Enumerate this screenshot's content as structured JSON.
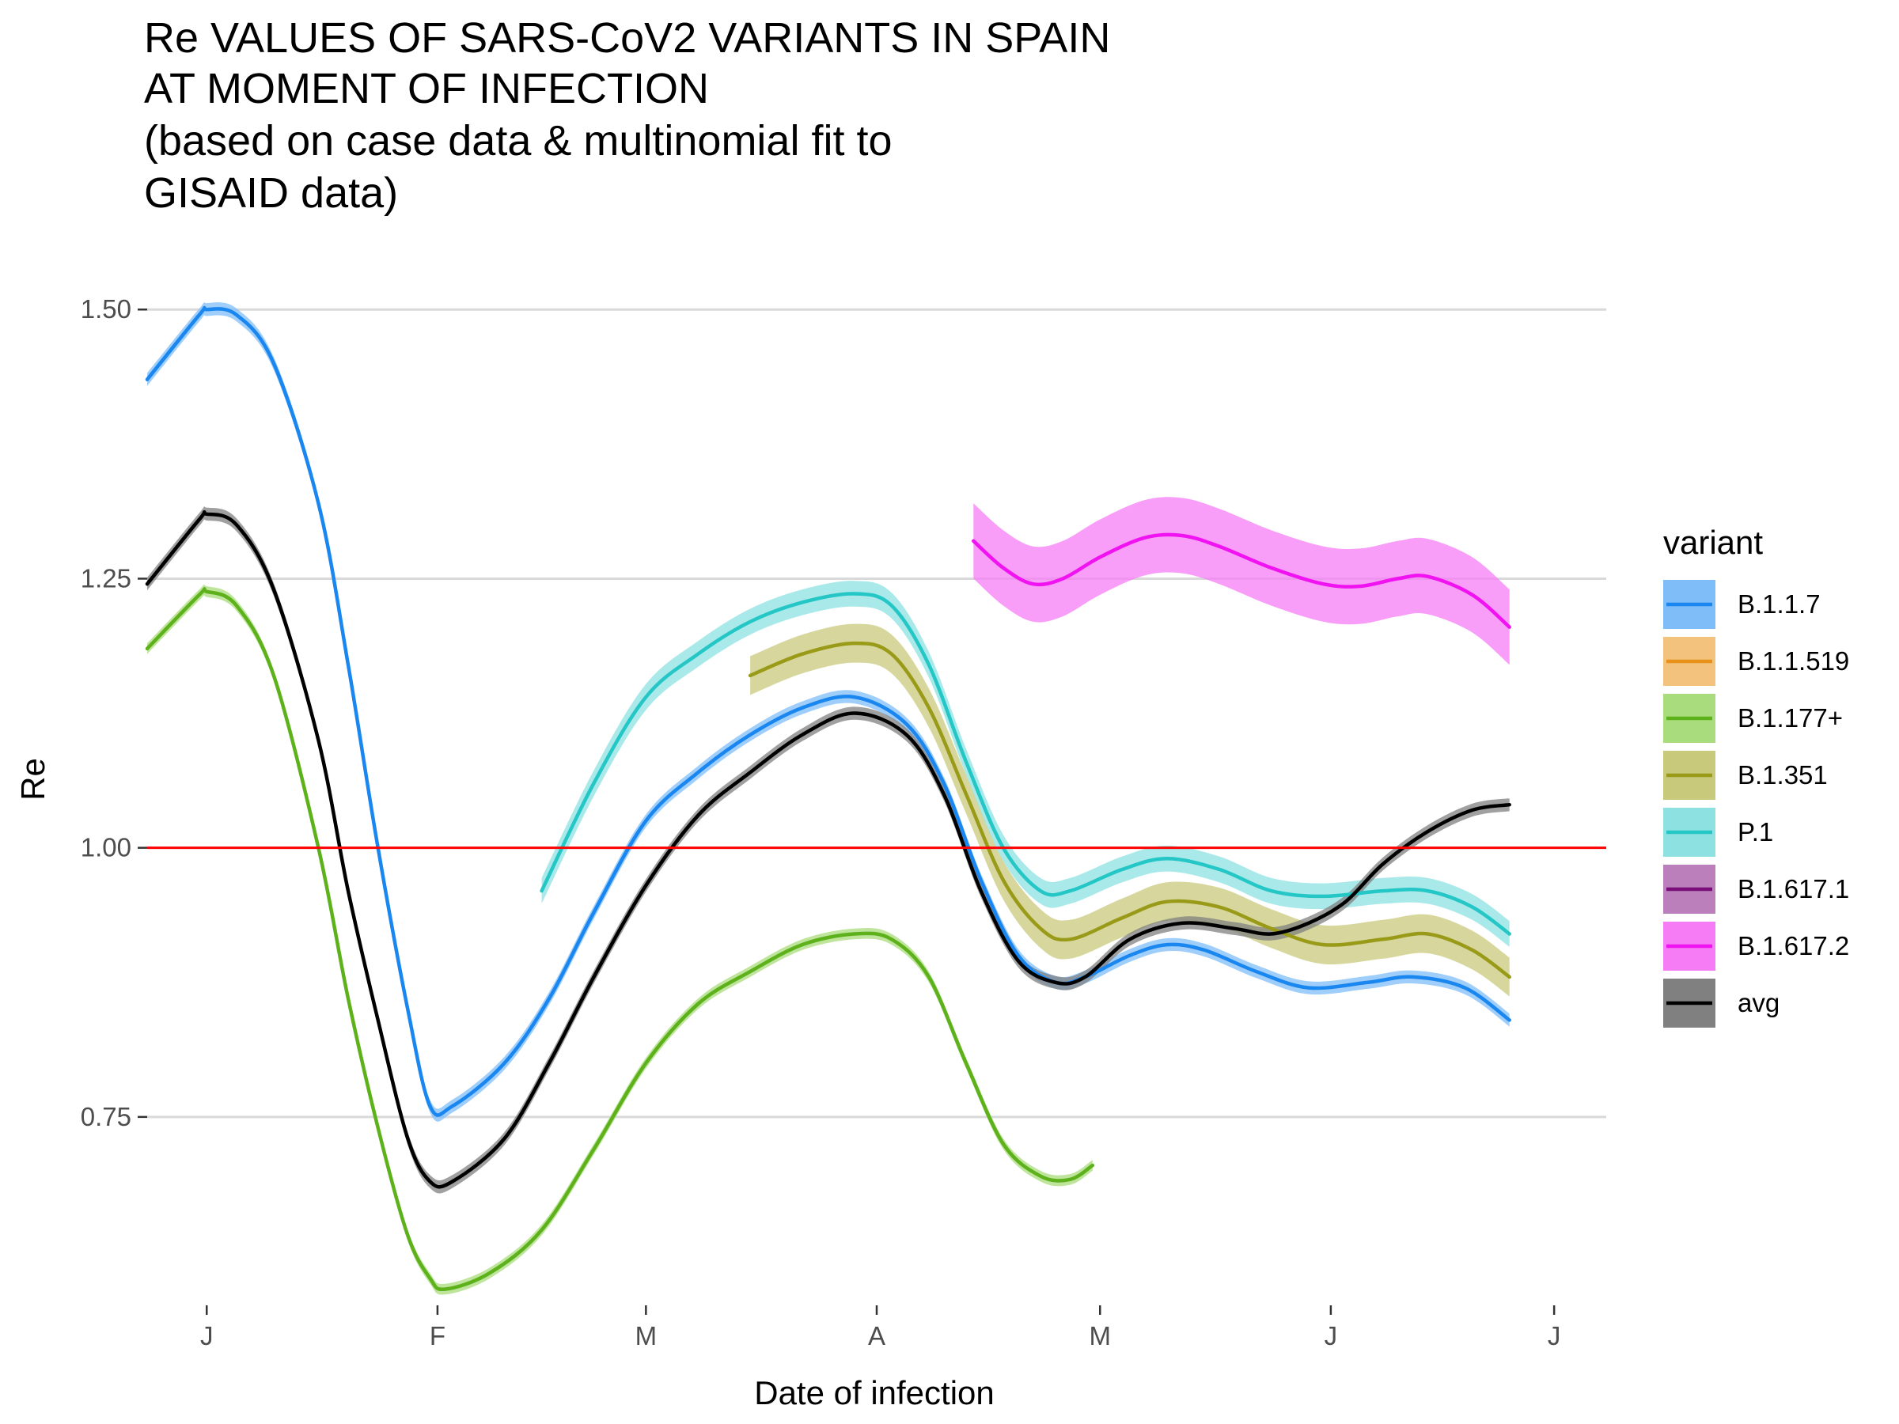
{
  "chart_data": {
    "type": "line",
    "title_lines": [
      "Re VALUES OF SARS-CoV2 VARIANTS IN SPAIN",
      "AT MOMENT OF INFECTION",
      "(based on case data & multinomial fit to",
      "GISAID data)"
    ],
    "xlabel": "Date of infection",
    "ylabel": "Re",
    "x_range": [
      "2020-12-24",
      "2021-07-08"
    ],
    "ylim": [
      0.575,
      1.545
    ],
    "x_ticks": [
      {
        "date": "2021-01-01",
        "label": "J"
      },
      {
        "date": "2021-02-01",
        "label": "F"
      },
      {
        "date": "2021-03-01",
        "label": "M"
      },
      {
        "date": "2021-04-01",
        "label": "A"
      },
      {
        "date": "2021-05-01",
        "label": "M"
      },
      {
        "date": "2021-06-01",
        "label": "J"
      },
      {
        "date": "2021-07-01",
        "label": "J"
      }
    ],
    "y_ticks": [
      0.75,
      1.0,
      1.25,
      1.5
    ],
    "y_tick_labels": [
      "0.75",
      "1.00",
      "1.25",
      "1.50"
    ],
    "reference_line": {
      "y": 1.0,
      "color": "#ff0000"
    },
    "grid": "horizontal major lines only",
    "legend": {
      "title": "variant",
      "position": "right"
    },
    "series": [
      {
        "name": "B.1.1.7",
        "color": "#1a86f0",
        "fill": "#7fbdf8",
        "band": 0.006,
        "points": [
          [
            "2020-12-24",
            1.435
          ],
          [
            "2020-12-31",
            1.495
          ],
          [
            "2021-01-01",
            1.5
          ],
          [
            "2021-01-05",
            1.495
          ],
          [
            "2021-01-10",
            1.45
          ],
          [
            "2021-01-16",
            1.32
          ],
          [
            "2021-01-20",
            1.17
          ],
          [
            "2021-01-24",
            1.0
          ],
          [
            "2021-01-28",
            0.85
          ],
          [
            "2021-01-31",
            0.76
          ],
          [
            "2021-02-03",
            0.76
          ],
          [
            "2021-02-10",
            0.8
          ],
          [
            "2021-02-16",
            0.86
          ],
          [
            "2021-02-22",
            0.94
          ],
          [
            "2021-03-01",
            1.025
          ],
          [
            "2021-03-08",
            1.07
          ],
          [
            "2021-03-15",
            1.105
          ],
          [
            "2021-03-22",
            1.13
          ],
          [
            "2021-03-29",
            1.14
          ],
          [
            "2021-04-05",
            1.115
          ],
          [
            "2021-04-10",
            1.06
          ],
          [
            "2021-04-15",
            0.97
          ],
          [
            "2021-04-20",
            0.9
          ],
          [
            "2021-04-25",
            0.875
          ],
          [
            "2021-04-29",
            0.88
          ],
          [
            "2021-05-05",
            0.9
          ],
          [
            "2021-05-10",
            0.91
          ],
          [
            "2021-05-15",
            0.905
          ],
          [
            "2021-05-22",
            0.885
          ],
          [
            "2021-05-29",
            0.87
          ],
          [
            "2021-06-06",
            0.875
          ],
          [
            "2021-06-12",
            0.88
          ],
          [
            "2021-06-19",
            0.87
          ],
          [
            "2021-06-25",
            0.84
          ]
        ]
      },
      {
        "name": "B.1.1.519",
        "color": "#e8921c",
        "fill": "#f3c27c",
        "band": 0.01,
        "points": []
      },
      {
        "name": "B.1.177+",
        "color": "#5db11b",
        "fill": "#a9dc7c",
        "band": 0.005,
        "points": [
          [
            "2020-12-24",
            1.185
          ],
          [
            "2020-12-31",
            1.235
          ],
          [
            "2021-01-01",
            1.238
          ],
          [
            "2021-01-05",
            1.225
          ],
          [
            "2021-01-10",
            1.16
          ],
          [
            "2021-01-16",
            1.0
          ],
          [
            "2021-01-20",
            0.86
          ],
          [
            "2021-01-24",
            0.74
          ],
          [
            "2021-01-28",
            0.64
          ],
          [
            "2021-01-31",
            0.6
          ],
          [
            "2021-02-02",
            0.59
          ],
          [
            "2021-02-08",
            0.605
          ],
          [
            "2021-02-15",
            0.645
          ],
          [
            "2021-02-22",
            0.72
          ],
          [
            "2021-03-01",
            0.8
          ],
          [
            "2021-03-08",
            0.855
          ],
          [
            "2021-03-15",
            0.885
          ],
          [
            "2021-03-22",
            0.91
          ],
          [
            "2021-03-29",
            0.92
          ],
          [
            "2021-04-03",
            0.915
          ],
          [
            "2021-04-08",
            0.88
          ],
          [
            "2021-04-13",
            0.8
          ],
          [
            "2021-04-18",
            0.725
          ],
          [
            "2021-04-23",
            0.695
          ],
          [
            "2021-04-27",
            0.692
          ],
          [
            "2021-04-30",
            0.705
          ]
        ]
      },
      {
        "name": "B.1.351",
        "color": "#9a9a19",
        "fill": "#c9c97c",
        "band": 0.018,
        "points": [
          [
            "2021-03-15",
            1.16
          ],
          [
            "2021-03-22",
            1.18
          ],
          [
            "2021-03-29",
            1.19
          ],
          [
            "2021-04-03",
            1.18
          ],
          [
            "2021-04-08",
            1.13
          ],
          [
            "2021-04-13",
            1.05
          ],
          [
            "2021-04-18",
            0.97
          ],
          [
            "2021-04-23",
            0.925
          ],
          [
            "2021-04-27",
            0.915
          ],
          [
            "2021-05-04",
            0.935
          ],
          [
            "2021-05-10",
            0.95
          ],
          [
            "2021-05-17",
            0.945
          ],
          [
            "2021-05-24",
            0.925
          ],
          [
            "2021-05-31",
            0.91
          ],
          [
            "2021-06-08",
            0.915
          ],
          [
            "2021-06-14",
            0.92
          ],
          [
            "2021-06-20",
            0.905
          ],
          [
            "2021-06-25",
            0.88
          ]
        ]
      },
      {
        "name": "P.1",
        "color": "#25c6c6",
        "fill": "#8ee1e1",
        "band": 0.012,
        "points": [
          [
            "2021-02-15",
            0.96
          ],
          [
            "2021-02-22",
            1.06
          ],
          [
            "2021-03-01",
            1.14
          ],
          [
            "2021-03-08",
            1.18
          ],
          [
            "2021-03-15",
            1.21
          ],
          [
            "2021-03-22",
            1.228
          ],
          [
            "2021-03-29",
            1.236
          ],
          [
            "2021-04-03",
            1.225
          ],
          [
            "2021-04-08",
            1.17
          ],
          [
            "2021-04-13",
            1.08
          ],
          [
            "2021-04-18",
            1.0
          ],
          [
            "2021-04-23",
            0.96
          ],
          [
            "2021-04-27",
            0.96
          ],
          [
            "2021-05-04",
            0.98
          ],
          [
            "2021-05-10",
            0.99
          ],
          [
            "2021-05-17",
            0.98
          ],
          [
            "2021-05-24",
            0.96
          ],
          [
            "2021-05-31",
            0.955
          ],
          [
            "2021-06-08",
            0.96
          ],
          [
            "2021-06-14",
            0.96
          ],
          [
            "2021-06-20",
            0.945
          ],
          [
            "2021-06-25",
            0.92
          ]
        ]
      },
      {
        "name": "B.1.617.1",
        "color": "#7a0f7a",
        "fill": "#bb7fbb",
        "band": 0.01,
        "points": []
      },
      {
        "name": "B.1.617.2",
        "color": "#f012f0",
        "fill": "#f67cf6",
        "band": 0.035,
        "points": [
          [
            "2021-04-14",
            1.285
          ],
          [
            "2021-04-18",
            1.26
          ],
          [
            "2021-04-22",
            1.245
          ],
          [
            "2021-04-26",
            1.25
          ],
          [
            "2021-05-01",
            1.27
          ],
          [
            "2021-05-07",
            1.288
          ],
          [
            "2021-05-12",
            1.29
          ],
          [
            "2021-05-17",
            1.28
          ],
          [
            "2021-05-24",
            1.26
          ],
          [
            "2021-05-31",
            1.245
          ],
          [
            "2021-06-05",
            1.243
          ],
          [
            "2021-06-10",
            1.25
          ],
          [
            "2021-06-14",
            1.252
          ],
          [
            "2021-06-20",
            1.235
          ],
          [
            "2021-06-25",
            1.205
          ]
        ]
      },
      {
        "name": "avg",
        "color": "#000000",
        "fill": "#808080",
        "band": 0.006,
        "points": [
          [
            "2020-12-24",
            1.245
          ],
          [
            "2020-12-31",
            1.305
          ],
          [
            "2021-01-01",
            1.31
          ],
          [
            "2021-01-05",
            1.3
          ],
          [
            "2021-01-10",
            1.24
          ],
          [
            "2021-01-16",
            1.1
          ],
          [
            "2021-01-20",
            0.96
          ],
          [
            "2021-01-24",
            0.84
          ],
          [
            "2021-01-28",
            0.73
          ],
          [
            "2021-01-31",
            0.69
          ],
          [
            "2021-02-03",
            0.69
          ],
          [
            "2021-02-10",
            0.73
          ],
          [
            "2021-02-16",
            0.8
          ],
          [
            "2021-02-22",
            0.88
          ],
          [
            "2021-03-01",
            0.965
          ],
          [
            "2021-03-08",
            1.03
          ],
          [
            "2021-03-15",
            1.07
          ],
          [
            "2021-03-22",
            1.105
          ],
          [
            "2021-03-29",
            1.125
          ],
          [
            "2021-04-05",
            1.105
          ],
          [
            "2021-04-10",
            1.05
          ],
          [
            "2021-04-15",
            0.96
          ],
          [
            "2021-04-20",
            0.895
          ],
          [
            "2021-04-25",
            0.875
          ],
          [
            "2021-04-29",
            0.88
          ],
          [
            "2021-05-05",
            0.915
          ],
          [
            "2021-05-12",
            0.93
          ],
          [
            "2021-05-19",
            0.925
          ],
          [
            "2021-05-24",
            0.92
          ],
          [
            "2021-05-29",
            0.93
          ],
          [
            "2021-06-03",
            0.95
          ],
          [
            "2021-06-08",
            0.985
          ],
          [
            "2021-06-14",
            1.015
          ],
          [
            "2021-06-20",
            1.035
          ],
          [
            "2021-06-25",
            1.04
          ]
        ]
      }
    ]
  }
}
